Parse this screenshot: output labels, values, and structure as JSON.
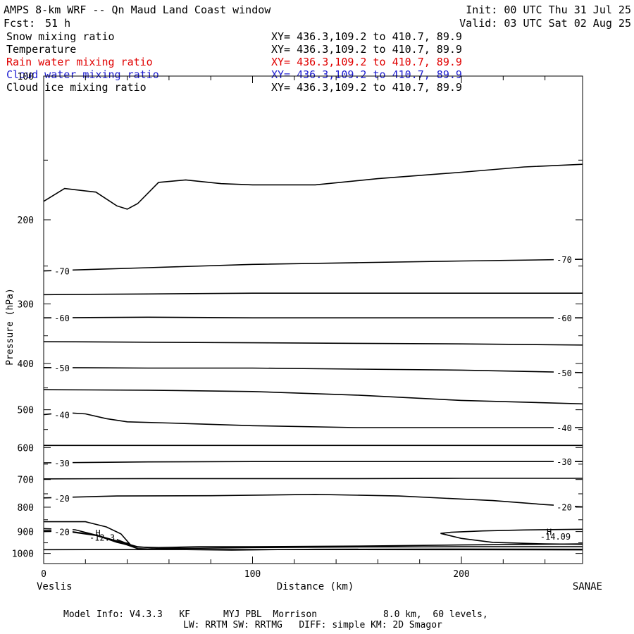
{
  "header": {
    "title": "AMPS 8-km WRF -- Qn Maud Land Coast window",
    "init": "Init: 00 UTC Thu 31 Jul 25",
    "fcst_label": "Fcst:",
    "fcst_value": "51 h",
    "valid": "Valid: 03 UTC Sat 02 Aug 25"
  },
  "fields": [
    {
      "name": "Snow mixing ratio",
      "xy": "XY= 436.3,109.2 to 410.7, 89.9",
      "color": "#000000"
    },
    {
      "name": "Temperature",
      "xy": "XY= 436.3,109.2 to 410.7, 89.9",
      "color": "#000000"
    },
    {
      "name": "Rain water mixing ratio",
      "xy": "XY= 436.3,109.2 to 410.7, 89.9",
      "color": "#e00000"
    },
    {
      "name": "Cloud water mixing ratio",
      "xy": "XY= 436.3,109.2 to 410.7, 89.9",
      "color": "#2020d0"
    },
    {
      "name": "Cloud ice mixing ratio",
      "xy": "XY= 436.3,109.2 to 410.7, 89.9",
      "color": "#000000"
    }
  ],
  "footer": {
    "model_info": "Model Info: V4.3.3   KF      MYJ PBL  Morrison            8.0 km,  60 levels,",
    "model_info2": "LW: RRTM SW: RRTMG   DIFF: simple KM: 2D Smagor"
  },
  "chart_data": {
    "type": "line",
    "xlabel": "Distance (km)",
    "ylabel": "Pressure (hPa)",
    "xlim": [
      0,
      258
    ],
    "ylim": [
      100,
      1050
    ],
    "y_scale": "log",
    "x_ticks": [
      0,
      100,
      200
    ],
    "y_ticks": [
      100,
      200,
      300,
      400,
      500,
      600,
      700,
      800,
      900,
      1000
    ],
    "x_endpoint_labels": [
      "Veslis",
      "SANAE"
    ],
    "contour_interval": 5,
    "series": [
      {
        "label": "",
        "x": [
          0,
          10,
          25,
          35,
          40,
          45,
          55,
          68,
          85,
          100,
          130,
          160,
          200,
          230,
          258
        ],
        "y": [
          183,
          172,
          175,
          187,
          190,
          185,
          167,
          165,
          168,
          169,
          169,
          164,
          159,
          155,
          153
        ]
      },
      {
        "label": "-70",
        "x": [
          0,
          50,
          100,
          150,
          200,
          258
        ],
        "y": [
          256,
          252,
          248,
          246,
          244,
          242
        ]
      },
      {
        "label": "",
        "x": [
          0,
          50,
          100,
          150,
          200,
          258
        ],
        "y": [
          287,
          286,
          285,
          285,
          285,
          285
        ]
      },
      {
        "label": "-60",
        "x": [
          0,
          50,
          100,
          150,
          200,
          258
        ],
        "y": [
          321,
          320,
          321,
          321,
          321,
          321
        ]
      },
      {
        "label": "",
        "x": [
          0,
          50,
          100,
          150,
          200,
          258
        ],
        "y": [
          360,
          361,
          362,
          363,
          364,
          366
        ]
      },
      {
        "label": "-50",
        "x": [
          0,
          50,
          100,
          150,
          200,
          258
        ],
        "y": [
          408,
          409,
          409,
          411,
          413,
          418
        ]
      },
      {
        "label": "",
        "x": [
          0,
          50,
          100,
          150,
          200,
          258
        ],
        "y": [
          454,
          455,
          458,
          466,
          478,
          486
        ]
      },
      {
        "label": "-40",
        "x": [
          0,
          10,
          20,
          30,
          40,
          60,
          100,
          150,
          200,
          258
        ],
        "y": [
          512,
          507,
          510,
          522,
          530,
          533,
          540,
          545,
          545,
          545
        ]
      },
      {
        "label": "",
        "x": [
          0,
          50,
          100,
          150,
          200,
          258
        ],
        "y": [
          594,
          594,
          594,
          594,
          594,
          594
        ]
      },
      {
        "label": "-30",
        "x": [
          0,
          50,
          100,
          150,
          200,
          258
        ],
        "y": [
          646,
          643,
          642,
          642,
          642,
          642
        ]
      },
      {
        "label": "",
        "x": [
          0,
          50,
          100,
          150,
          200,
          258
        ],
        "y": [
          698,
          697,
          697,
          697,
          696,
          696
        ]
      },
      {
        "label": "-20",
        "x": [
          0,
          35,
          80,
          130,
          170,
          215,
          240,
          258
        ],
        "y": [
          765,
          758,
          757,
          752,
          758,
          775,
          790,
          799
        ]
      },
      {
        "label": "",
        "x": [
          0,
          10,
          25,
          45,
          55,
          75,
          100,
          150,
          200,
          258
        ],
        "y": [
          895,
          896,
          915,
          968,
          976,
          975,
          972,
          969,
          968,
          968
        ]
      },
      {
        "label": "",
        "x": [
          0,
          15,
          25,
          35,
          45,
          55,
          75,
          100,
          150,
          200,
          258
        ],
        "y": [
          887,
          892,
          915,
          948,
          970,
          972,
          968,
          968,
          965,
          960,
          955
        ]
      },
      {
        "label": "-20",
        "x": [
          0,
          10,
          25,
          40,
          45,
          55,
          90,
          130,
          200,
          258
        ],
        "y": [
          900,
          898,
          917,
          960,
          977,
          980,
          984,
          980,
          979,
          980
        ]
      },
      {
        "label": "",
        "x": [
          0,
          100,
          200,
          258
        ],
        "y": [
          982,
          981,
          982,
          983
        ]
      },
      {
        "label": "",
        "x": [
          0,
          20,
          30,
          37,
          41,
          39,
          35
        ],
        "y": [
          858,
          858,
          880,
          910,
          953,
          950,
          935
        ]
      },
      {
        "label": "",
        "x": [
          258,
          230,
          210,
          195,
          190,
          200,
          215,
          240,
          258
        ],
        "y": [
          890,
          893,
          897,
          903,
          908,
          930,
          948,
          955,
          957
        ]
      }
    ],
    "annotations": [
      {
        "text": "H",
        "x": 26,
        "y": 920
      },
      {
        "text": "-12.3",
        "x": 28,
        "y": 940
      },
      {
        "text": "H",
        "x": 242,
        "y": 915
      },
      {
        "text": "-14.09",
        "x": 245,
        "y": 935
      }
    ]
  }
}
